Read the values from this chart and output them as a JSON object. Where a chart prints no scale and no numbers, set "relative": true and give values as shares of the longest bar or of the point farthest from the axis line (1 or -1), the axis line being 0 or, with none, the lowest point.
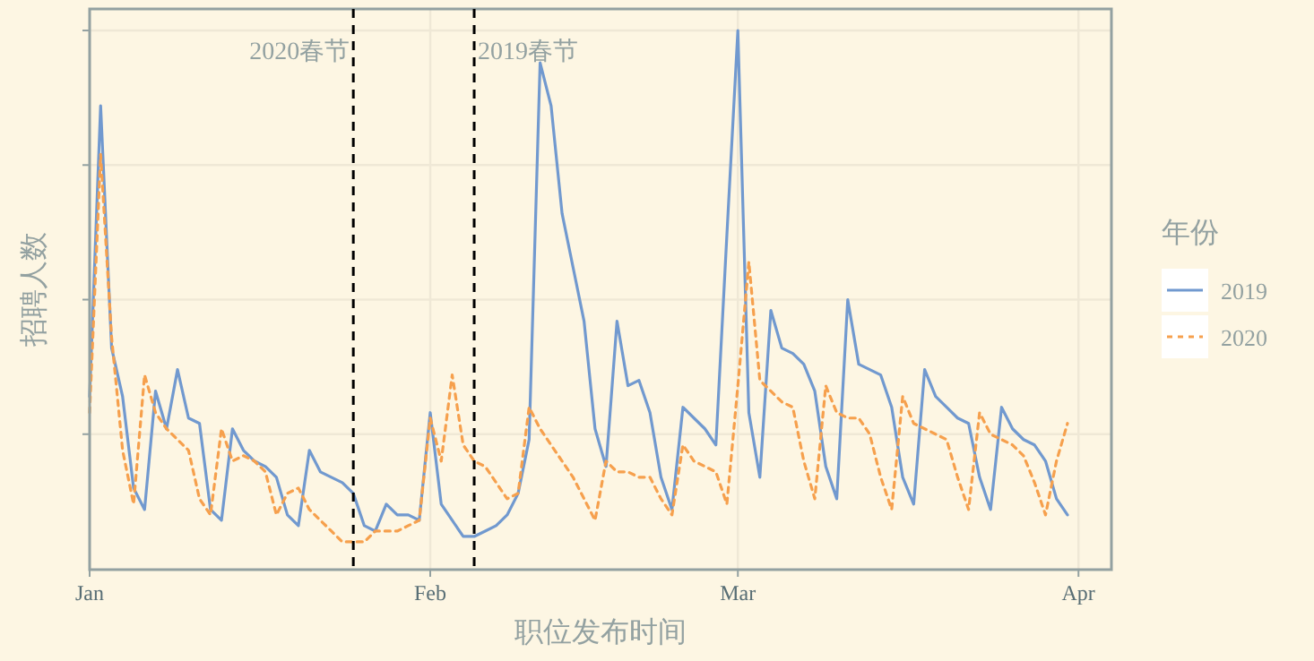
{
  "chart_data": {
    "type": "line",
    "xlabel": "职位发布时间",
    "ylabel": "招聘人数",
    "legend_title": "年份",
    "relative": true,
    "grid": true,
    "legend": "right",
    "x": [
      "--01-01",
      "--01-02",
      "--01-03",
      "--01-04",
      "--01-05",
      "--01-06",
      "--01-07",
      "--01-08",
      "--01-09",
      "--01-10",
      "--01-11",
      "--01-12",
      "--01-13",
      "--01-14",
      "--01-15",
      "--01-16",
      "--01-17",
      "--01-18",
      "--01-19",
      "--01-20",
      "--01-21",
      "--01-22",
      "--01-23",
      "--01-24",
      "--01-25",
      "--01-26",
      "--01-27",
      "--01-28",
      "--01-29",
      "--01-30",
      "--01-31",
      "--02-01",
      "--02-02",
      "--02-03",
      "--02-04",
      "--02-05",
      "--02-06",
      "--02-07",
      "--02-08",
      "--02-09",
      "--02-10",
      "--02-11",
      "--02-12",
      "--02-13",
      "--02-14",
      "--02-15",
      "--02-16",
      "--02-17",
      "--02-18",
      "--02-19",
      "--02-20",
      "--02-21",
      "--02-22",
      "--02-23",
      "--02-24",
      "--02-25",
      "--02-26",
      "--02-27",
      "--02-28",
      "--03-01",
      "--03-02",
      "--03-03",
      "--03-04",
      "--03-05",
      "--03-06",
      "--03-07",
      "--03-08",
      "--03-09",
      "--03-10",
      "--03-11",
      "--03-12",
      "--03-13",
      "--03-14",
      "--03-15",
      "--03-16",
      "--03-17",
      "--03-18",
      "--03-19",
      "--03-20",
      "--03-21",
      "--03-22",
      "--03-23",
      "--03-24",
      "--03-25",
      "--03-26",
      "--03-27",
      "--03-28",
      "--03-29",
      "--03-30",
      "--03-31"
    ],
    "xlim": [
      "--01-01",
      "--04-04"
    ],
    "xticks": [
      {
        "value": "--01-01",
        "label": "Jan"
      },
      {
        "value": "--02-01",
        "label": "Feb"
      },
      {
        "value": "--03-01",
        "label": "Mar"
      },
      {
        "value": "--04-01",
        "label": "Apr"
      }
    ],
    "series": [
      {
        "name": "2019",
        "color": "#7199cf",
        "line_style": "solid",
        "values": [
          0.32,
          0.86,
          0.41,
          0.32,
          0.15,
          0.11,
          0.33,
          0.26,
          0.37,
          0.28,
          0.27,
          0.11,
          0.09,
          0.26,
          0.22,
          0.2,
          0.19,
          0.17,
          0.1,
          0.08,
          0.22,
          0.18,
          0.17,
          0.16,
          0.14,
          0.08,
          0.07,
          0.12,
          0.1,
          0.1,
          0.09,
          0.29,
          0.12,
          0.09,
          0.06,
          0.06,
          0.07,
          0.08,
          0.1,
          0.14,
          0.24,
          0.94,
          0.86,
          0.66,
          0.56,
          0.46,
          0.26,
          0.19,
          0.46,
          0.34,
          0.35,
          0.29,
          0.17,
          0.11,
          0.3,
          0.28,
          0.26,
          0.23,
          0.62,
          1,
          0.29,
          0.17,
          0.48,
          0.41,
          0.4,
          0.38,
          0.33,
          0.19,
          0.13,
          0.5,
          0.38,
          0.37,
          0.36,
          0.3,
          0.17,
          0.12,
          0.37,
          0.32,
          0.3,
          0.28,
          0.27,
          0.17,
          0.11,
          0.3,
          0.26,
          0.24,
          0.23,
          0.2,
          0.13,
          0.1
        ]
      },
      {
        "name": "2020",
        "color": "#f6a04d",
        "line_style": "dashed",
        "values": [
          0.29,
          0.77,
          0.43,
          0.22,
          0.12,
          0.36,
          0.29,
          0.26,
          0.24,
          0.22,
          0.13,
          0.1,
          0.26,
          0.2,
          0.21,
          0.2,
          0.18,
          0.1,
          0.14,
          0.15,
          0.11,
          0.09,
          0.07,
          0.05,
          0.05,
          0.05,
          0.07,
          0.07,
          0.07,
          0.08,
          0.09,
          0.28,
          0.2,
          0.36,
          0.23,
          0.2,
          0.19,
          0.16,
          0.13,
          0.14,
          0.3,
          0.26,
          0.23,
          0.2,
          0.17,
          0.13,
          0.09,
          0.2,
          0.18,
          0.18,
          0.17,
          0.17,
          0.13,
          0.1,
          0.23,
          0.2,
          0.19,
          0.18,
          0.12,
          0.34,
          0.57,
          0.35,
          0.33,
          0.31,
          0.3,
          0.2,
          0.13,
          0.34,
          0.29,
          0.28,
          0.28,
          0.25,
          0.17,
          0.11,
          0.32,
          0.27,
          0.26,
          0.25,
          0.24,
          0.17,
          0.11,
          0.29,
          0.25,
          0.24,
          0.23,
          0.21,
          0.16,
          0.1,
          0.2,
          0.27
        ]
      }
    ],
    "ref_lines": [
      {
        "axis": "x",
        "value": "--01-25",
        "label": "2020春节",
        "color": "#000000",
        "line_style": "dashed"
      },
      {
        "axis": "x",
        "value": "--02-05",
        "label": "2019春节",
        "color": "#000000",
        "line_style": "dashed"
      }
    ]
  }
}
